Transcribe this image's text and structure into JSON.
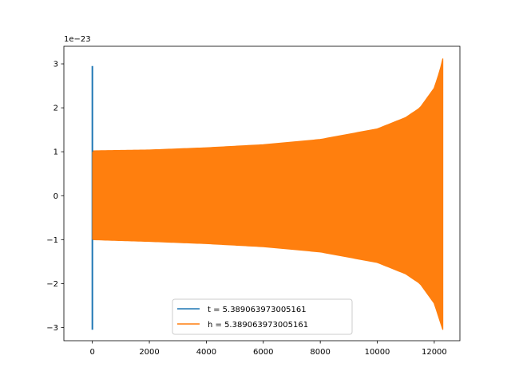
{
  "chart_data": {
    "type": "line",
    "title": "",
    "xlabel": "",
    "ylabel": "",
    "y_offset_text": "1e−23",
    "xlim": [
      -1000,
      12900
    ],
    "ylim": [
      -3.3,
      3.4
    ],
    "xticks": [
      0,
      2000,
      4000,
      6000,
      8000,
      10000,
      12000
    ],
    "xtick_labels": [
      "0",
      "2000",
      "4000",
      "6000",
      "8000",
      "10000",
      "12000"
    ],
    "yticks": [
      -3,
      -2,
      -1,
      0,
      1,
      2,
      3
    ],
    "ytick_labels": [
      "−3",
      "−2",
      "−1",
      "0",
      "1",
      "2",
      "3"
    ],
    "grid": false,
    "legend_position": "lower center",
    "series": [
      {
        "name": "t = 5.389063973005161",
        "color": "#1f77b4",
        "x": [
          0,
          0,
          0,
          0
        ],
        "y": [
          2.95,
          -3.05,
          2.35,
          -1.0
        ],
        "upper_envelope": [
          [
            0,
            2.95
          ],
          [
            0,
            2.95
          ]
        ],
        "lower_envelope": [
          [
            0,
            -3.05
          ],
          [
            0,
            -3.05
          ]
        ]
      },
      {
        "name": "h = 5.389063973005161",
        "color": "#ff7f0e",
        "x_range": [
          0,
          12300
        ],
        "upper_envelope": [
          [
            0,
            1.02
          ],
          [
            2000,
            1.04
          ],
          [
            4000,
            1.09
          ],
          [
            6000,
            1.16
          ],
          [
            8000,
            1.28
          ],
          [
            10000,
            1.52
          ],
          [
            11000,
            1.78
          ],
          [
            11500,
            2.0
          ],
          [
            12000,
            2.45
          ],
          [
            12200,
            2.85
          ],
          [
            12300,
            3.12
          ]
        ],
        "lower_envelope": [
          [
            0,
            -1.0
          ],
          [
            2000,
            -1.04
          ],
          [
            4000,
            -1.09
          ],
          [
            6000,
            -1.16
          ],
          [
            8000,
            -1.28
          ],
          [
            10000,
            -1.52
          ],
          [
            11000,
            -1.78
          ],
          [
            11500,
            -2.0
          ],
          [
            12000,
            -2.45
          ],
          [
            12200,
            -2.85
          ],
          [
            12300,
            -3.05
          ]
        ]
      }
    ]
  }
}
